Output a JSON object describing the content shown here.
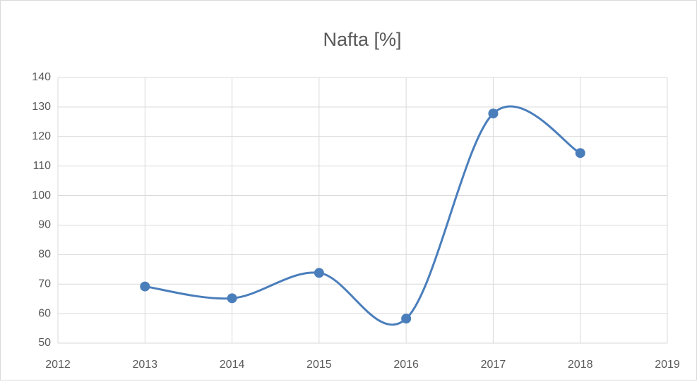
{
  "chart_data": {
    "type": "line",
    "title": "Nafta [%]",
    "x": [
      2013,
      2014,
      2015,
      2016,
      2017,
      2018
    ],
    "series": [
      {
        "name": "Nafta [%]",
        "color": "#4a7ebb",
        "values": [
          69.2,
          65.2,
          73.8,
          58.3,
          127.8,
          114.4
        ]
      }
    ],
    "xlim": [
      2012,
      2019
    ],
    "xticks": [
      2012,
      2013,
      2014,
      2015,
      2016,
      2017,
      2018,
      2019
    ],
    "ylim": [
      50,
      140
    ],
    "yticks": [
      50,
      60,
      70,
      80,
      90,
      100,
      110,
      120,
      130,
      140
    ],
    "grid": true,
    "smooth": true
  }
}
